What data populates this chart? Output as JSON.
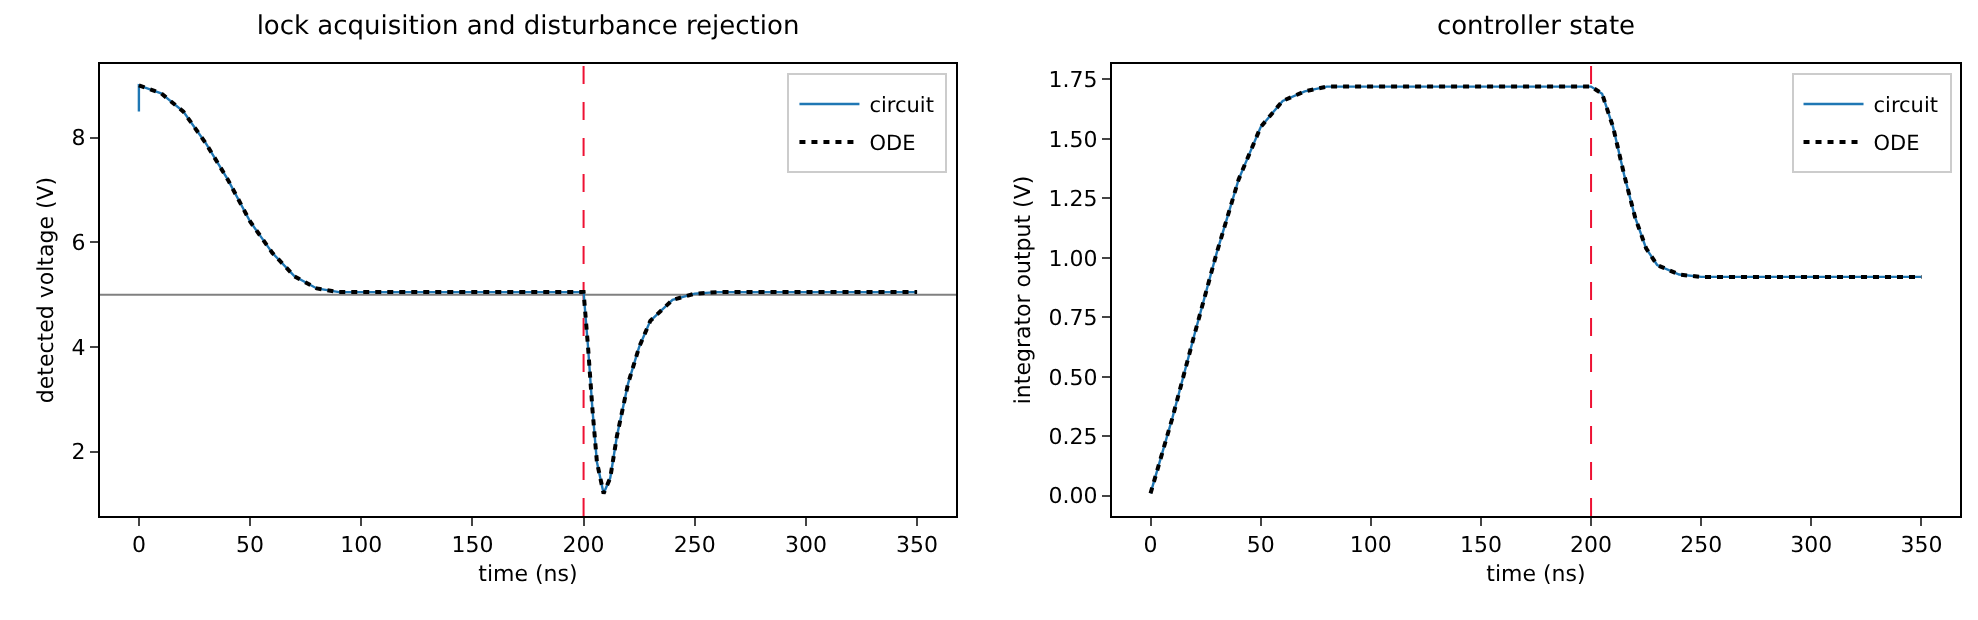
{
  "chart_data": [
    {
      "type": "line",
      "title": "lock acquisition and disturbance rejection",
      "xlabel": "time (ns)",
      "ylabel": "detected voltage (V)",
      "xlim": [
        -17.5,
        367.5
      ],
      "xticks": [
        0,
        50,
        100,
        150,
        200,
        250,
        300,
        350
      ],
      "ylim": [
        0.77,
        9.41
      ],
      "yticks": [
        2,
        4,
        6,
        8
      ],
      "grid": false,
      "legend": "top right",
      "ref_lines": [
        {
          "axis": "y",
          "value": 5,
          "color": "#808080",
          "line_style": "solid"
        },
        {
          "axis": "x",
          "value": 200,
          "color": "#ee1133",
          "line_style": "dashed"
        }
      ],
      "series": [
        {
          "name": "circuit",
          "color": "#1f77b4",
          "line_style": "solid",
          "x": [
            0,
            0,
            10,
            20,
            30,
            40,
            50,
            60,
            70,
            80,
            90,
            100,
            150,
            200,
            202,
            204,
            206,
            209,
            212,
            215,
            220,
            225,
            230,
            240,
            250,
            260,
            300,
            350
          ],
          "values": [
            8.5,
            9.0,
            8.85,
            8.5,
            7.9,
            7.2,
            6.4,
            5.8,
            5.35,
            5.12,
            5.05,
            5.05,
            5.05,
            5.05,
            4.0,
            2.8,
            1.8,
            1.2,
            1.5,
            2.3,
            3.3,
            4.0,
            4.5,
            4.9,
            5.02,
            5.05,
            5.05,
            5.05
          ]
        },
        {
          "name": "ODE",
          "color": "#000000",
          "line_style": "dotted",
          "x": [
            0,
            10,
            20,
            30,
            40,
            50,
            60,
            70,
            80,
            90,
            100,
            150,
            200,
            202,
            204,
            206,
            209,
            212,
            215,
            220,
            225,
            230,
            240,
            250,
            260,
            300,
            350
          ],
          "values": [
            9.0,
            8.85,
            8.5,
            7.9,
            7.2,
            6.4,
            5.8,
            5.35,
            5.12,
            5.05,
            5.05,
            5.05,
            5.05,
            4.0,
            2.8,
            1.8,
            1.2,
            1.5,
            2.3,
            3.3,
            4.0,
            4.5,
            4.9,
            5.02,
            5.05,
            5.05,
            5.05
          ]
        }
      ]
    },
    {
      "type": "line",
      "title": "controller state",
      "xlabel": "time (ns)",
      "ylabel": "integrator output (V)",
      "xlim": [
        -17.5,
        367.5
      ],
      "xticks": [
        0,
        50,
        100,
        150,
        200,
        250,
        300,
        350
      ],
      "ylim": [
        -0.085,
        1.815
      ],
      "yticks": [
        {
          "value": 0,
          "label": "0.00"
        },
        {
          "value": 0.25,
          "label": "0.25"
        },
        {
          "value": 0.5,
          "label": "0.50"
        },
        {
          "value": 0.75,
          "label": "0.75"
        },
        {
          "value": 1,
          "label": "1.00"
        },
        {
          "value": 1.25,
          "label": "1.25"
        },
        {
          "value": 1.5,
          "label": "1.50"
        },
        {
          "value": 1.75,
          "label": "1.75"
        }
      ],
      "grid": false,
      "legend": "top right",
      "ref_lines": [
        {
          "axis": "x",
          "value": 200,
          "color": "#ee1133",
          "line_style": "dashed"
        }
      ],
      "series": [
        {
          "name": "circuit",
          "color": "#1f77b4",
          "line_style": "solid",
          "x": [
            0,
            10,
            20,
            30,
            40,
            50,
            60,
            70,
            80,
            100,
            150,
            200,
            205,
            210,
            215,
            220,
            225,
            230,
            240,
            250,
            300,
            350
          ],
          "values": [
            0.01,
            0.33,
            0.68,
            1.02,
            1.33,
            1.55,
            1.66,
            1.7,
            1.72,
            1.72,
            1.72,
            1.72,
            1.69,
            1.55,
            1.35,
            1.17,
            1.04,
            0.97,
            0.93,
            0.92,
            0.92,
            0.92
          ]
        },
        {
          "name": "ODE",
          "color": "#000000",
          "line_style": "dotted",
          "x": [
            0,
            10,
            20,
            30,
            40,
            50,
            60,
            70,
            80,
            100,
            150,
            200,
            205,
            210,
            215,
            220,
            225,
            230,
            240,
            250,
            300,
            350
          ],
          "values": [
            0.01,
            0.33,
            0.68,
            1.02,
            1.33,
            1.55,
            1.66,
            1.7,
            1.72,
            1.72,
            1.72,
            1.72,
            1.69,
            1.55,
            1.35,
            1.17,
            1.04,
            0.97,
            0.93,
            0.92,
            0.92,
            0.92
          ]
        }
      ]
    }
  ]
}
